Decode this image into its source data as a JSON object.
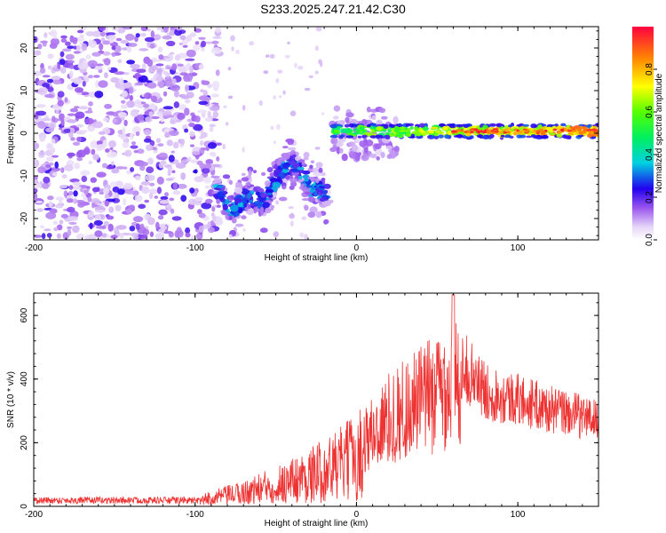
{
  "chart_data": [
    {
      "type": "heatmap",
      "title": "S233.2025.247.21.42.C30",
      "xlabel": "Height of straight line (km)",
      "ylabel": "Frequency (Hz)",
      "xlim": [
        -200,
        150
      ],
      "ylim": [
        -25,
        25
      ],
      "x_ticks": [
        "-200",
        "-100",
        "0",
        "100"
      ],
      "y_ticks": [
        "-20",
        "-10",
        "0",
        "10",
        "20"
      ],
      "colorbar": {
        "label": "Normalized spectral amplitude",
        "range": [
          0,
          1
        ],
        "ticks": [
          "0.0",
          "0.2",
          "0.4",
          "0.6",
          "0.8"
        ]
      },
      "features": [
        {
          "name": "noise",
          "x_range": [
            -200,
            -85
          ],
          "freq_range": [
            -25,
            25
          ],
          "amplitude": 0.1
        },
        {
          "name": "low-frequency band",
          "x_range": [
            -87,
            -18
          ],
          "freq_center": [
            -13,
            -18,
            -15,
            -16,
            -9,
            -7,
            -13,
            -14
          ],
          "amplitude": 0.3
        },
        {
          "name": "main band",
          "x_range": [
            -15,
            150
          ],
          "freq_center": 0.5,
          "amplitude": 0.7
        }
      ]
    },
    {
      "type": "line",
      "title": "",
      "xlabel": "Height of straight line (km)",
      "ylabel": "SNR (10 * v/v)",
      "xlim": [
        -200,
        150
      ],
      "ylim": [
        0,
        670
      ],
      "x_ticks": [
        "-200",
        "-100",
        "0",
        "100"
      ],
      "y_ticks": [
        "0",
        "200",
        "400",
        "600"
      ],
      "series": [
        {
          "name": "SNR",
          "color": "#ee3333",
          "envelope_x": [
            -200,
            -100,
            -90,
            -70,
            -50,
            -30,
            -10,
            0,
            10,
            20,
            30,
            45,
            60,
            80,
            100,
            120,
            150
          ],
          "envelope_y": [
            25,
            25,
            50,
            80,
            130,
            180,
            250,
            300,
            350,
            420,
            470,
            530,
            600,
            450,
            420,
            380,
            340
          ]
        }
      ]
    }
  ],
  "colors": {
    "line": "#ee3333",
    "axis": "#000000"
  }
}
